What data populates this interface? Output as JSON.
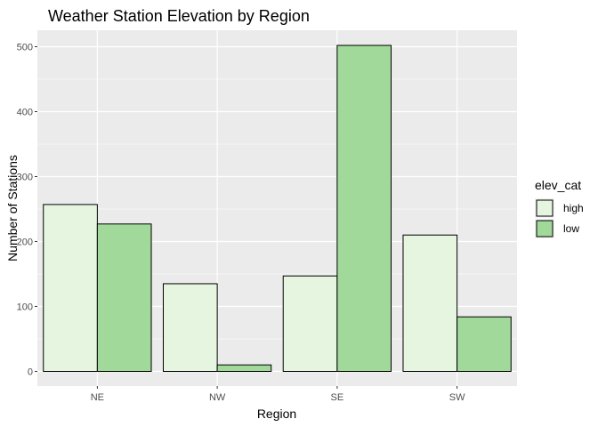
{
  "chart_data": {
    "type": "bar",
    "title": "Weather Station Elevation by Region",
    "xlabel": "Region",
    "ylabel": "Number of Stations",
    "categories": [
      "NE",
      "NW",
      "SE",
      "SW"
    ],
    "series": [
      {
        "name": "high",
        "values": [
          257,
          135,
          147,
          210
        ],
        "color": "#e5f5e0"
      },
      {
        "name": "low",
        "values": [
          227,
          10,
          502,
          84
        ],
        "color": "#a1d99b"
      }
    ],
    "yticks": [
      0,
      100,
      200,
      300,
      400,
      500
    ],
    "ylim": [
      -25,
      527
    ],
    "legend": {
      "title": "elev_cat",
      "position": "right"
    },
    "grid": true,
    "colors": {
      "panel": "#ebebeb",
      "grid": "#ffffff",
      "bar_outline": "#000000"
    }
  }
}
